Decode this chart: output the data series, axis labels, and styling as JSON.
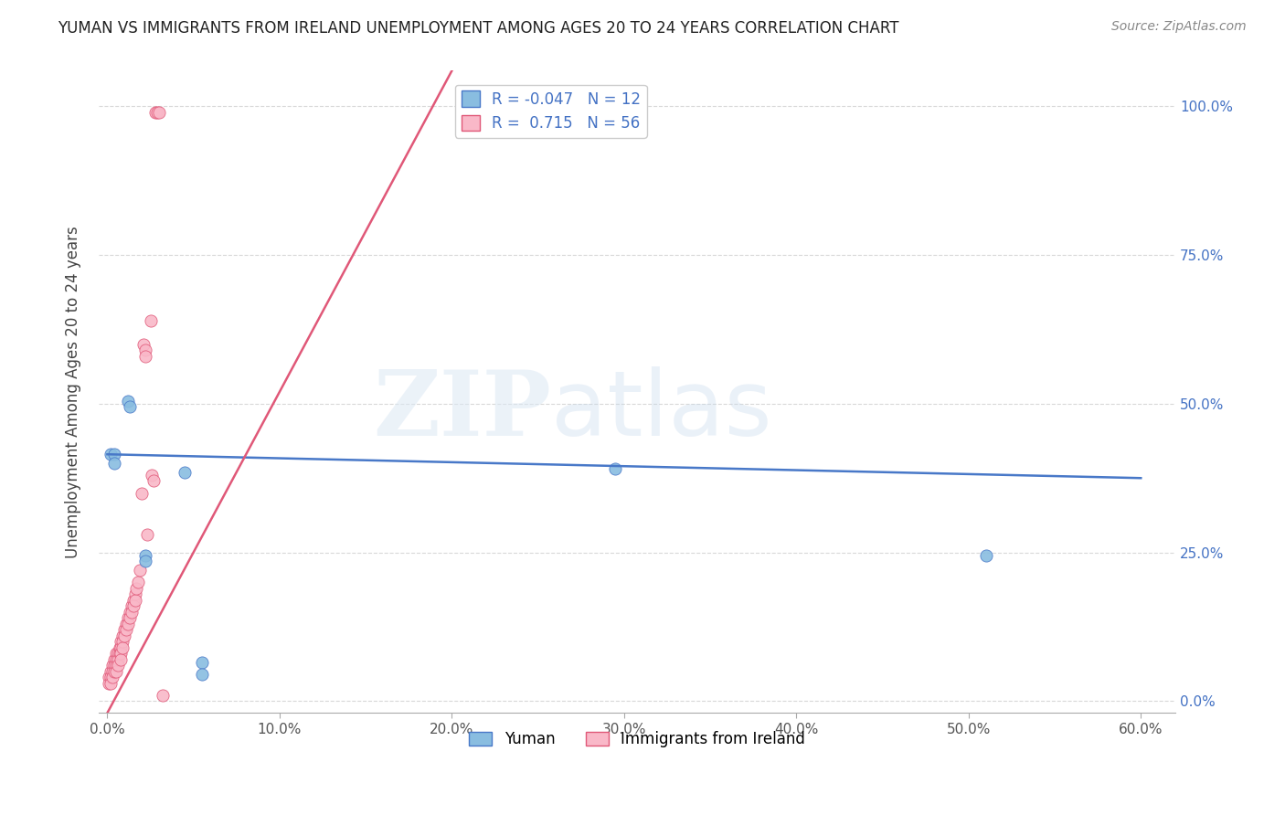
{
  "title": "YUMAN VS IMMIGRANTS FROM IRELAND UNEMPLOYMENT AMONG AGES 20 TO 24 YEARS CORRELATION CHART",
  "source": "Source: ZipAtlas.com",
  "xlabel_ticks": [
    "0.0%",
    "10.0%",
    "20.0%",
    "30.0%",
    "40.0%",
    "50.0%",
    "60.0%"
  ],
  "xlabel_vals": [
    0.0,
    0.1,
    0.2,
    0.3,
    0.4,
    0.5,
    0.6
  ],
  "ylabel": "Unemployment Among Ages 20 to 24 years",
  "ylabel_ticks_right": [
    "100.0%",
    "75.0%",
    "50.0%",
    "25.0%",
    "0.0%"
  ],
  "ylabel_vals_right": [
    1.0,
    0.75,
    0.5,
    0.25,
    0.0
  ],
  "ylabel_ticks_left": [
    "",
    "",
    "",
    "",
    ""
  ],
  "xlim": [
    -0.005,
    0.62
  ],
  "ylim": [
    -0.02,
    1.06
  ],
  "legend_blue_R": "-0.047",
  "legend_blue_N": "12",
  "legend_pink_R": "0.715",
  "legend_pink_N": "56",
  "blue_scatter_color": "#89bde0",
  "pink_scatter_color": "#f9b8c8",
  "blue_line_color": "#4878c8",
  "pink_line_color": "#e05878",
  "blue_edge_color": "#4878c8",
  "pink_edge_color": "#e05878",
  "blue_line_x": [
    0.0,
    0.6
  ],
  "blue_line_y": [
    0.415,
    0.375
  ],
  "pink_line_x": [
    0.0,
    0.2
  ],
  "pink_line_y": [
    -0.02,
    1.06
  ],
  "blue_scatter_x": [
    0.002,
    0.004,
    0.004,
    0.012,
    0.013,
    0.022,
    0.022,
    0.045,
    0.055,
    0.055,
    0.295,
    0.51
  ],
  "blue_scatter_y": [
    0.415,
    0.415,
    0.4,
    0.505,
    0.495,
    0.245,
    0.235,
    0.385,
    0.065,
    0.045,
    0.39,
    0.245
  ],
  "pink_scatter_x": [
    0.001,
    0.001,
    0.002,
    0.002,
    0.002,
    0.003,
    0.003,
    0.003,
    0.004,
    0.004,
    0.004,
    0.005,
    0.005,
    0.005,
    0.005,
    0.006,
    0.006,
    0.006,
    0.007,
    0.007,
    0.008,
    0.008,
    0.008,
    0.008,
    0.009,
    0.009,
    0.009,
    0.01,
    0.01,
    0.011,
    0.011,
    0.012,
    0.012,
    0.013,
    0.013,
    0.014,
    0.014,
    0.015,
    0.015,
    0.016,
    0.016,
    0.017,
    0.018,
    0.019,
    0.02,
    0.021,
    0.022,
    0.022,
    0.023,
    0.025,
    0.026,
    0.027,
    0.028,
    0.029,
    0.03,
    0.032
  ],
  "pink_scatter_y": [
    0.04,
    0.03,
    0.05,
    0.04,
    0.03,
    0.06,
    0.05,
    0.04,
    0.07,
    0.06,
    0.05,
    0.08,
    0.07,
    0.06,
    0.05,
    0.08,
    0.07,
    0.06,
    0.09,
    0.08,
    0.1,
    0.09,
    0.08,
    0.07,
    0.11,
    0.1,
    0.09,
    0.12,
    0.11,
    0.13,
    0.12,
    0.14,
    0.13,
    0.15,
    0.14,
    0.16,
    0.15,
    0.17,
    0.16,
    0.18,
    0.17,
    0.19,
    0.2,
    0.22,
    0.35,
    0.6,
    0.59,
    0.58,
    0.28,
    0.64,
    0.38,
    0.37,
    0.99,
    0.99,
    0.99,
    0.01
  ],
  "grid_color": "#d8d8d8",
  "grid_style": "--",
  "background_color": "#ffffff",
  "right_tick_color": "#4472c4"
}
